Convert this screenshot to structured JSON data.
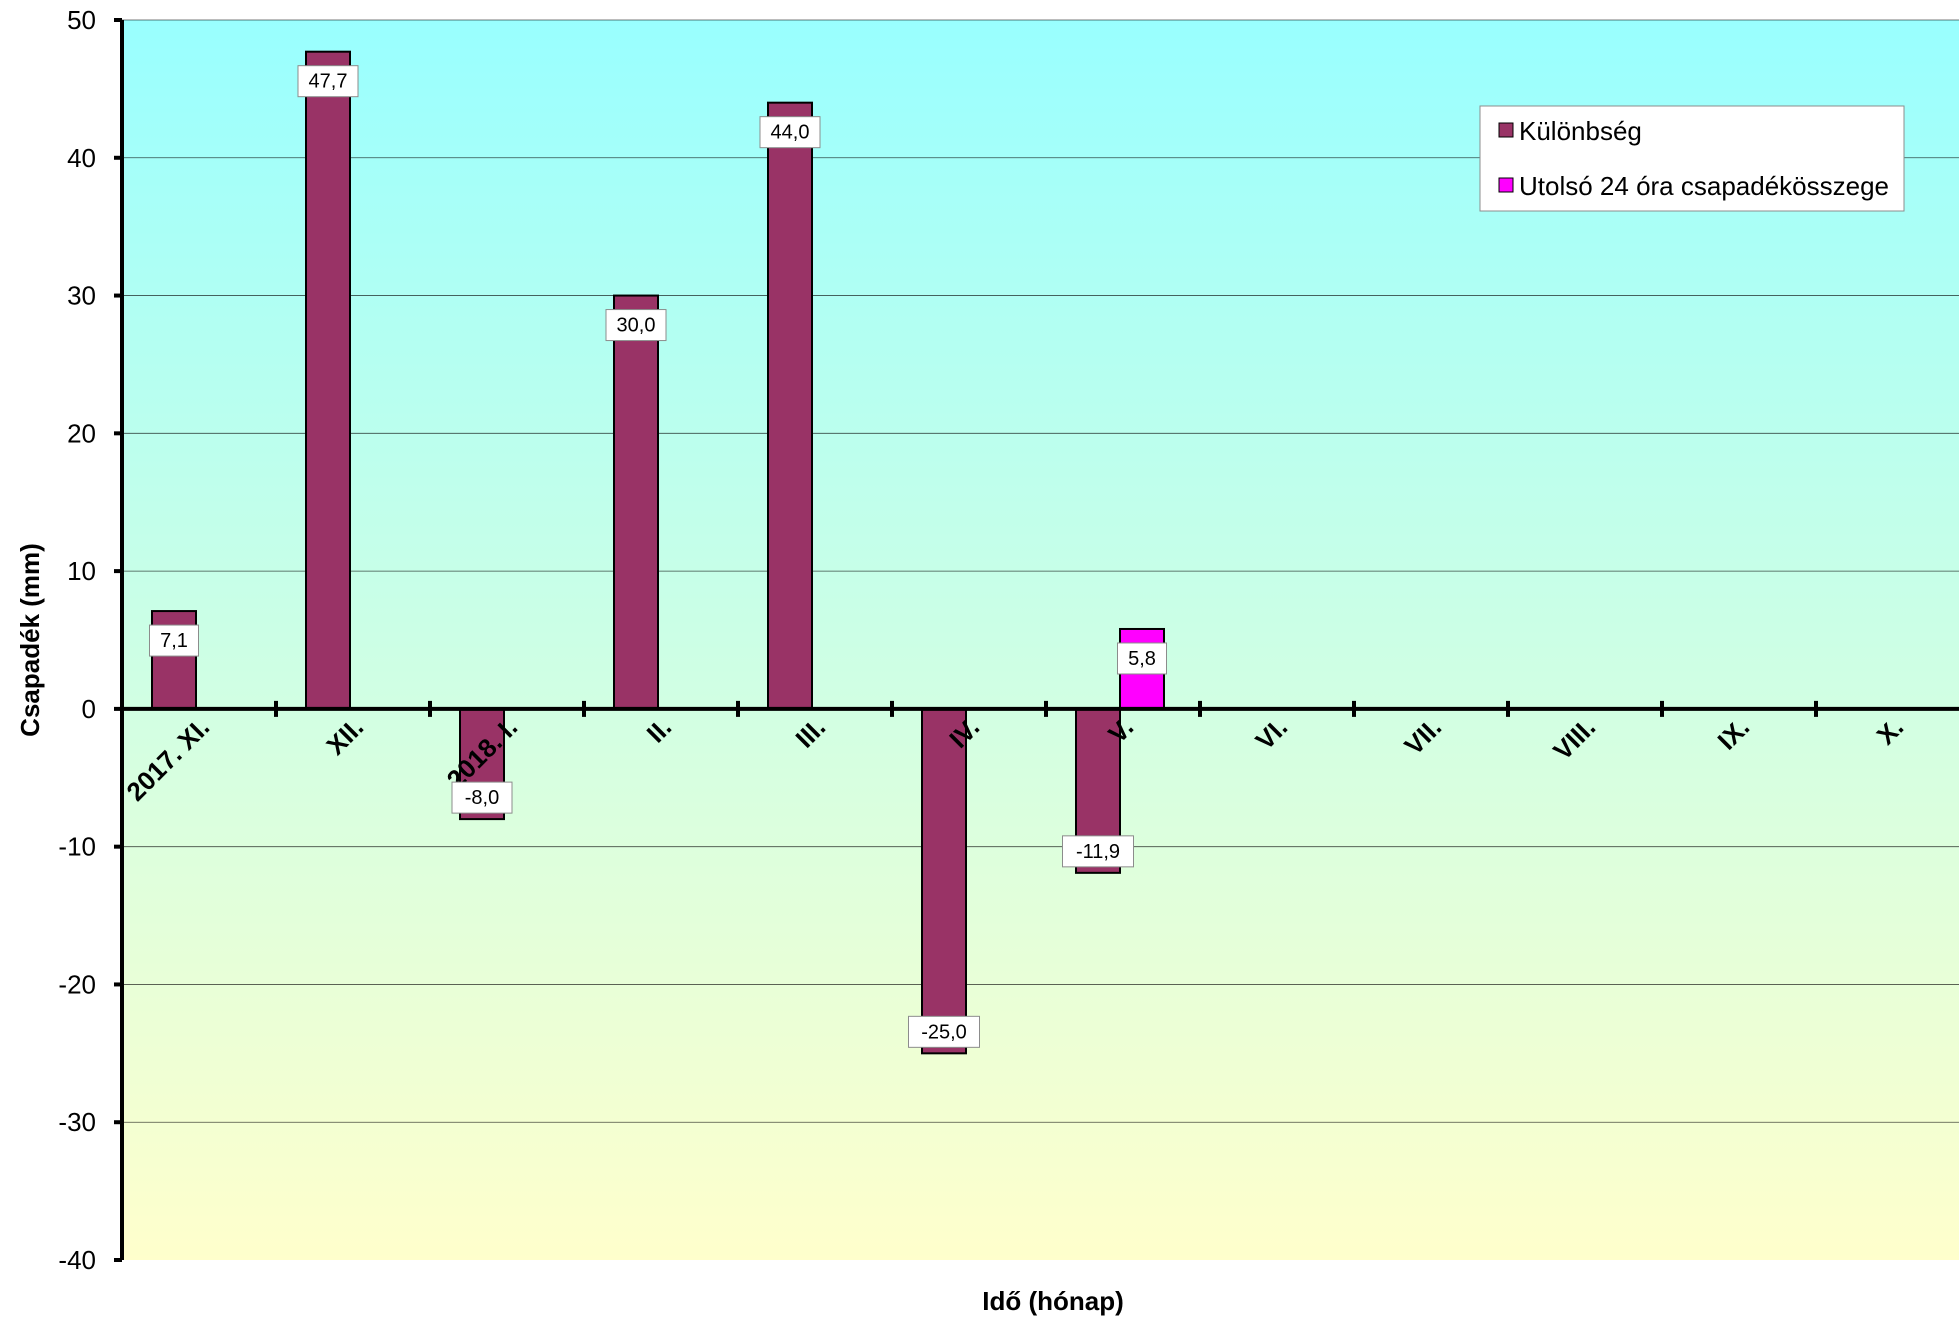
{
  "chart_data": {
    "type": "bar",
    "categories": [
      "2017. XI.",
      "XII.",
      "2018. I.",
      "II.",
      "III.",
      "IV.",
      "V.",
      "VI.",
      "VII.",
      "VIII.",
      "IX.",
      "X."
    ],
    "series": [
      {
        "name": "Különbség",
        "color": "#993366",
        "values": [
          7.1,
          47.7,
          -8.0,
          30.0,
          44.0,
          -25.0,
          -11.9,
          null,
          null,
          null,
          null,
          null
        ],
        "labels": [
          "7,1",
          "47,7",
          "-8,0",
          "30,0",
          "44,0",
          "-25,0",
          "-11,9",
          "",
          "",
          "",
          "",
          ""
        ]
      },
      {
        "name": "Utolsó 24 óra csapadékösszege",
        "color": "#ff00ff",
        "values": [
          null,
          null,
          null,
          null,
          null,
          null,
          5.8,
          null,
          null,
          null,
          null,
          null
        ],
        "labels": [
          "",
          "",
          "",
          "",
          "",
          "",
          "5,8",
          "",
          "",
          "",
          "",
          ""
        ]
      }
    ],
    "xlabel": "Idő (hónap)",
    "ylabel": "Csapadék (mm)",
    "ylim": [
      -40,
      50
    ],
    "yticks": [
      -40,
      -30,
      -20,
      -10,
      0,
      10,
      20,
      30,
      40,
      50
    ],
    "grid": true,
    "legend": "top-right",
    "background_gradient": [
      "#99ffff",
      "#ffffcc"
    ]
  }
}
